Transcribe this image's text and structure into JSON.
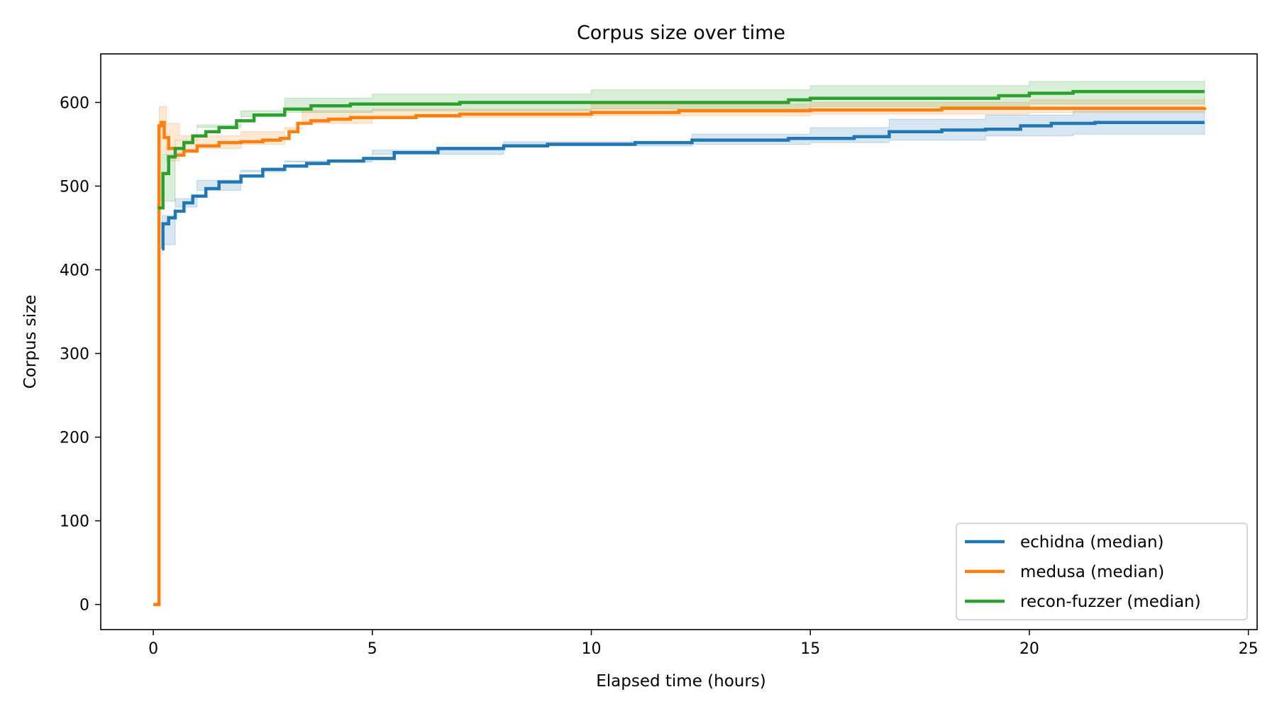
{
  "chart_data": {
    "type": "line",
    "title": "Corpus size over time",
    "xlabel": "Elapsed time (hours)",
    "ylabel": "Corpus size",
    "xlim": [
      -1.2,
      25.2
    ],
    "ylim": [
      -30,
      658
    ],
    "xticks": [
      0,
      5,
      10,
      15,
      20,
      25
    ],
    "yticks": [
      0,
      100,
      200,
      300,
      400,
      500,
      600
    ],
    "grid": false,
    "legend": "bottom-right",
    "step": true,
    "series": [
      {
        "name": "echidna (median)",
        "color": "#1f77b4",
        "points": [
          [
            0.2,
            425
          ],
          [
            0.22,
            455
          ],
          [
            0.35,
            462
          ],
          [
            0.5,
            470
          ],
          [
            0.7,
            480
          ],
          [
            0.9,
            488
          ],
          [
            1.2,
            497
          ],
          [
            1.5,
            505
          ],
          [
            2.0,
            512
          ],
          [
            2.5,
            520
          ],
          [
            3.0,
            524
          ],
          [
            3.5,
            527
          ],
          [
            4.0,
            530
          ],
          [
            4.8,
            533
          ],
          [
            5.5,
            540
          ],
          [
            6.5,
            545
          ],
          [
            8.0,
            548
          ],
          [
            9.0,
            550
          ],
          [
            11.0,
            552
          ],
          [
            12.3,
            555
          ],
          [
            14.5,
            557
          ],
          [
            16.0,
            559
          ],
          [
            16.8,
            565
          ],
          [
            18.0,
            567
          ],
          [
            19.0,
            568
          ],
          [
            19.8,
            572
          ],
          [
            20.5,
            575
          ],
          [
            21.5,
            576
          ],
          [
            24.0,
            576
          ]
        ],
        "band": [
          [
            0.2,
            418,
            430
          ],
          [
            0.5,
            465,
            475
          ],
          [
            1.0,
            485,
            495
          ],
          [
            2.0,
            507,
            517
          ],
          [
            3.0,
            519,
            529
          ],
          [
            5.0,
            530,
            538
          ],
          [
            8.0,
            543,
            553
          ],
          [
            12.3,
            548,
            562
          ],
          [
            15.0,
            550,
            570
          ],
          [
            16.8,
            552,
            580
          ],
          [
            19.0,
            555,
            585
          ],
          [
            21.0,
            560,
            590
          ],
          [
            24.0,
            562,
            592
          ]
        ]
      },
      {
        "name": "medusa (median)",
        "color": "#ff7f0e",
        "points": [
          [
            0.0,
            0
          ],
          [
            0.12,
            0
          ],
          [
            0.13,
            572
          ],
          [
            0.18,
            576
          ],
          [
            0.25,
            558
          ],
          [
            0.35,
            545
          ],
          [
            0.5,
            537
          ],
          [
            0.7,
            542
          ],
          [
            1.0,
            548
          ],
          [
            1.5,
            552
          ],
          [
            2.0,
            553
          ],
          [
            2.5,
            555
          ],
          [
            2.9,
            557
          ],
          [
            3.1,
            565
          ],
          [
            3.3,
            575
          ],
          [
            3.6,
            578
          ],
          [
            4.0,
            580
          ],
          [
            4.5,
            582
          ],
          [
            6.0,
            584
          ],
          [
            7.0,
            586
          ],
          [
            10.0,
            588
          ],
          [
            12.0,
            590
          ],
          [
            15.0,
            591
          ],
          [
            18.0,
            593
          ],
          [
            24.0,
            594
          ]
        ],
        "band": [
          [
            0.13,
            560,
            595
          ],
          [
            0.3,
            540,
            575
          ],
          [
            0.6,
            530,
            560
          ],
          [
            1.0,
            540,
            560
          ],
          [
            2.0,
            545,
            565
          ],
          [
            3.0,
            550,
            570
          ],
          [
            3.4,
            568,
            590
          ],
          [
            5.0,
            575,
            592
          ],
          [
            10.0,
            582,
            598
          ],
          [
            15.0,
            584,
            600
          ],
          [
            20.0,
            586,
            603
          ],
          [
            24.0,
            588,
            606
          ]
        ]
      },
      {
        "name": "recon-fuzzer (median)",
        "color": "#2ca02c",
        "points": [
          [
            0.1,
            474
          ],
          [
            0.22,
            515
          ],
          [
            0.35,
            535
          ],
          [
            0.5,
            545
          ],
          [
            0.7,
            552
          ],
          [
            0.9,
            560
          ],
          [
            1.2,
            565
          ],
          [
            1.5,
            570
          ],
          [
            1.9,
            578
          ],
          [
            2.3,
            585
          ],
          [
            3.0,
            592
          ],
          [
            3.6,
            596
          ],
          [
            4.5,
            598
          ],
          [
            7.0,
            600
          ],
          [
            14.5,
            603
          ],
          [
            15.0,
            605
          ],
          [
            19.3,
            608
          ],
          [
            20.0,
            611
          ],
          [
            21.0,
            613
          ],
          [
            24.0,
            613
          ]
        ],
        "band": [
          [
            0.1,
            468,
            482
          ],
          [
            0.5,
            538,
            555
          ],
          [
            1.0,
            555,
            570
          ],
          [
            2.0,
            573,
            590
          ],
          [
            3.0,
            583,
            605
          ],
          [
            5.0,
            588,
            610
          ],
          [
            10.0,
            590,
            615
          ],
          [
            15.0,
            592,
            620
          ],
          [
            20.0,
            595,
            625
          ],
          [
            24.0,
            598,
            628
          ]
        ]
      }
    ]
  }
}
